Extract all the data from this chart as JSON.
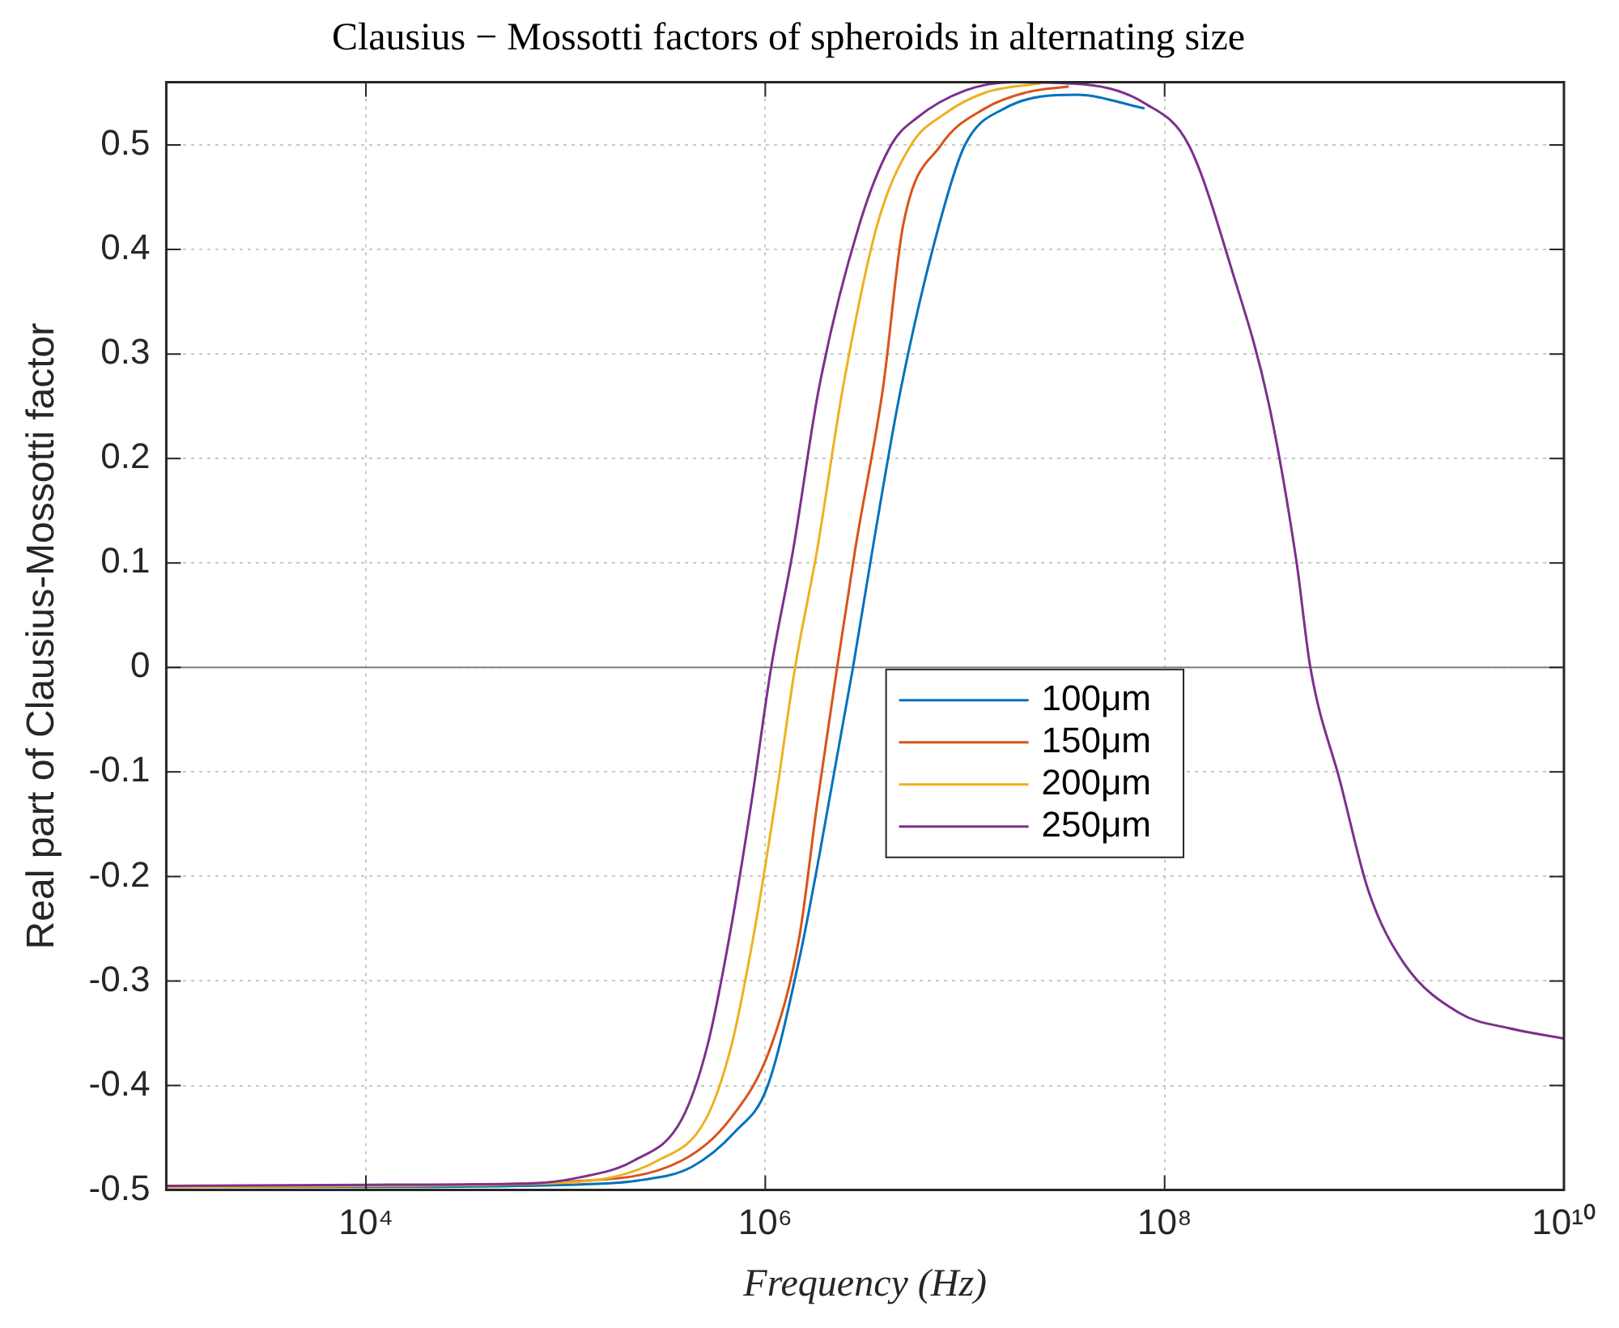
{
  "chart_data": {
    "type": "line",
    "title": "Clausius − Mossotti factors of spheroids in alternating size",
    "xlabel": "Frequency (Hz)",
    "ylabel": "Real part of Clausius-Mossotti factor",
    "log": "x",
    "grid": true,
    "legend": "center",
    "marker": "none",
    "line_style": "solid",
    "xlim": [
      1000,
      10000000000
    ],
    "xticks": [
      {
        "value": 10000,
        "label": "10⁴"
      },
      {
        "value": 1000000,
        "label": "10⁶"
      },
      {
        "value": 100000000,
        "label": "10⁸"
      },
      {
        "value": 10000000000,
        "label": "10¹⁰"
      }
    ],
    "ylim": [
      -0.5,
      0.56
    ],
    "yticks": [
      -0.5,
      -0.4,
      -0.3,
      -0.2,
      -0.1,
      0,
      0.1,
      0.2,
      0.3,
      0.4,
      0.5
    ],
    "ref_lines": [
      {
        "axis": "y",
        "value": 0,
        "color": "#808080"
      }
    ],
    "series": [
      {
        "name": "100μm",
        "color": "#0072bd",
        "x": [
          1000,
          10000,
          100000,
          229000,
          427000,
          708000,
          1020000,
          1480000,
          1860000,
          2750000,
          3550000,
          4790000,
          7410000,
          10000000,
          15800000,
          36300000,
          79400000
        ],
        "values": [
          -0.497,
          -0.497,
          -0.495,
          -0.491,
          -0.478,
          -0.444,
          -0.402,
          -0.279,
          -0.181,
          0,
          0.128,
          0.268,
          0.423,
          0.5,
          0.535,
          0.548,
          0.535
        ]
      },
      {
        "name": "150μm",
        "color": "#d95319",
        "x": [
          1000,
          10000,
          100000,
          380000,
          661000,
          1070000,
          1480000,
          1820000,
          2290000,
          2820000,
          3890000,
          4900000,
          7590000,
          12600000,
          20000000,
          33100000
        ],
        "values": [
          -0.497,
          -0.496,
          -0.492,
          -0.472,
          -0.433,
          -0.362,
          -0.258,
          -0.13,
          0,
          0.113,
          0.268,
          0.423,
          0.5,
          0.535,
          0.55,
          0.556
        ]
      },
      {
        "name": "200μm",
        "color": "#edb120",
        "x": [
          1000,
          10000,
          100000,
          288000,
          501000,
          676000,
          871000,
          1120000,
          1410000,
          1820000,
          2450000,
          3630000,
          5370000,
          7940000,
          12600000,
          24000000
        ],
        "values": [
          -0.497,
          -0.496,
          -0.493,
          -0.472,
          -0.433,
          -0.362,
          -0.258,
          -0.13,
          0,
          0.113,
          0.268,
          0.423,
          0.5,
          0.53,
          0.55,
          0.559
        ]
      },
      {
        "name": "250μm",
        "color": "#7e2f8e",
        "x": [
          1000,
          10000,
          63100,
          117000,
          219000,
          380000,
          513000,
          661000,
          851000,
          1070000,
          1380000,
          1860000,
          2950000,
          4270000,
          5750000,
          10000000,
          17400000,
          39800000,
          79400000,
          132000000,
          219000000,
          331000000,
          457000000,
          537000000,
          759000000,
          1050000000,
          1580000000,
          3020000000,
          5250000000,
          10000000000
        ],
        "values": [
          -0.496,
          -0.495,
          -0.494,
          -0.488,
          -0.472,
          -0.433,
          -0.362,
          -0.258,
          -0.13,
          0,
          0.113,
          0.268,
          0.423,
          0.5,
          0.526,
          0.552,
          0.56,
          0.558,
          0.54,
          0.5,
          0.378,
          0.254,
          0.102,
          0,
          -0.11,
          -0.214,
          -0.283,
          -0.331,
          -0.345,
          -0.355
        ]
      }
    ]
  }
}
